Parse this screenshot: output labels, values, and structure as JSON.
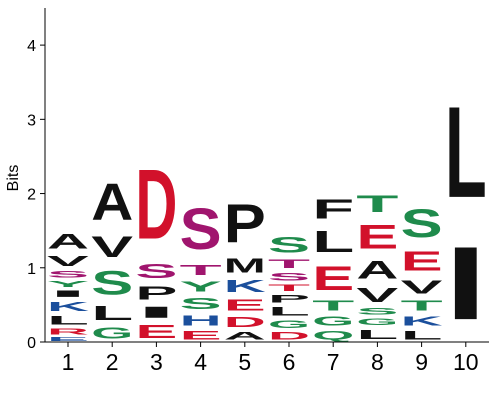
{
  "chart_data": {
    "type": "sequence-logo",
    "ylabel": "Bits",
    "ylim": [
      0,
      4.5
    ],
    "yticks": [
      "0",
      "1",
      "2",
      "3",
      "4"
    ],
    "colors": {
      "black": "#111111",
      "red": "#d2112b",
      "green": "#1f8b4c",
      "blue": "#1b4f9c",
      "purple": "#a0156e"
    },
    "positions": [
      {
        "label": "1",
        "letters": [
          {
            "char": "E",
            "bits": 0.08,
            "color": "blue"
          },
          {
            "char": "R",
            "bits": 0.12,
            "color": "red"
          },
          {
            "char": "L",
            "bits": 0.18,
            "color": "black"
          },
          {
            "char": "K",
            "bits": 0.2,
            "color": "blue"
          },
          {
            "char": "I",
            "bits": 0.14,
            "color": "black"
          },
          {
            "char": "Y",
            "bits": 0.12,
            "color": "green"
          },
          {
            "char": "S",
            "bits": 0.14,
            "color": "purple"
          },
          {
            "char": "V",
            "bits": 0.22,
            "color": "black"
          },
          {
            "char": "A",
            "bits": 0.32,
            "color": "black"
          }
        ]
      },
      {
        "label": "2",
        "letters": [
          {
            "char": "G",
            "bits": 0.24,
            "color": "green"
          },
          {
            "char": "L",
            "bits": 0.3,
            "color": "black"
          },
          {
            "char": "S",
            "bits": 0.52,
            "color": "green"
          },
          {
            "char": "V",
            "bits": 0.44,
            "color": "black"
          },
          {
            "char": "A",
            "bits": 0.78,
            "color": "black"
          }
        ]
      },
      {
        "label": "3",
        "letters": [
          {
            "char": "E",
            "bits": 0.28,
            "color": "red"
          },
          {
            "char": "I",
            "bits": 0.24,
            "color": "black"
          },
          {
            "char": "P",
            "bits": 0.28,
            "color": "black"
          },
          {
            "char": "S",
            "bits": 0.3,
            "color": "purple"
          },
          {
            "char": "D",
            "bits": 1.5,
            "color": "red"
          }
        ]
      },
      {
        "label": "4",
        "letters": [
          {
            "char": "E",
            "bits": 0.18,
            "color": "red"
          },
          {
            "char": "H",
            "bits": 0.22,
            "color": "blue"
          },
          {
            "char": "S",
            "bits": 0.24,
            "color": "green"
          },
          {
            "char": "Y",
            "bits": 0.22,
            "color": "green"
          },
          {
            "char": "T",
            "bits": 0.22,
            "color": "purple"
          },
          {
            "char": "S",
            "bits": 0.88,
            "color": "purple"
          }
        ]
      },
      {
        "label": "5",
        "letters": [
          {
            "char": "A",
            "bits": 0.16,
            "color": "black"
          },
          {
            "char": "D",
            "bits": 0.22,
            "color": "red"
          },
          {
            "char": "E",
            "bits": 0.24,
            "color": "red"
          },
          {
            "char": "K",
            "bits": 0.26,
            "color": "blue"
          },
          {
            "char": "M",
            "bits": 0.3,
            "color": "black"
          },
          {
            "char": "P",
            "bits": 0.82,
            "color": "black"
          }
        ]
      },
      {
        "label": "6",
        "letters": [
          {
            "char": "D",
            "bits": 0.16,
            "color": "red"
          },
          {
            "char": "G",
            "bits": 0.16,
            "color": "green"
          },
          {
            "char": "L",
            "bits": 0.18,
            "color": "black"
          },
          {
            "char": "P",
            "bits": 0.16,
            "color": "black"
          },
          {
            "char": "T",
            "bits": 0.14,
            "color": "red"
          },
          {
            "char": "S",
            "bits": 0.16,
            "color": "purple"
          },
          {
            "char": "T",
            "bits": 0.18,
            "color": "purple"
          },
          {
            "char": "S",
            "bits": 0.34,
            "color": "green"
          }
        ]
      },
      {
        "label": "7",
        "letters": [
          {
            "char": "Q",
            "bits": 0.18,
            "color": "green"
          },
          {
            "char": "G",
            "bits": 0.2,
            "color": "green"
          },
          {
            "char": "T",
            "bits": 0.22,
            "color": "green"
          },
          {
            "char": "E",
            "bits": 0.52,
            "color": "red"
          },
          {
            "char": "L",
            "bits": 0.46,
            "color": "black"
          },
          {
            "char": "F",
            "bits": 0.42,
            "color": "black"
          }
        ]
      },
      {
        "label": "8",
        "letters": [
          {
            "char": "L",
            "bits": 0.2,
            "color": "black"
          },
          {
            "char": "G",
            "bits": 0.14,
            "color": "green"
          },
          {
            "char": "S",
            "bits": 0.14,
            "color": "green"
          },
          {
            "char": "V",
            "bits": 0.3,
            "color": "black"
          },
          {
            "char": "A",
            "bits": 0.38,
            "color": "black"
          },
          {
            "char": "E",
            "bits": 0.52,
            "color": "red"
          },
          {
            "char": "T",
            "bits": 0.36,
            "color": "green"
          }
        ]
      },
      {
        "label": "9",
        "letters": [
          {
            "char": "L",
            "bits": 0.18,
            "color": "black"
          },
          {
            "char": "K",
            "bits": 0.2,
            "color": "blue"
          },
          {
            "char": "T",
            "bits": 0.22,
            "color": "green"
          },
          {
            "char": "V",
            "bits": 0.28,
            "color": "black"
          },
          {
            "char": "E",
            "bits": 0.42,
            "color": "red"
          },
          {
            "char": "S",
            "bits": 0.6,
            "color": "green"
          }
        ]
      },
      {
        "label": "10",
        "letters": [
          {
            "char": "I",
            "bits": 1.57,
            "color": "black"
          },
          {
            "char": "L",
            "bits": 1.96,
            "color": "black"
          }
        ]
      }
    ]
  }
}
